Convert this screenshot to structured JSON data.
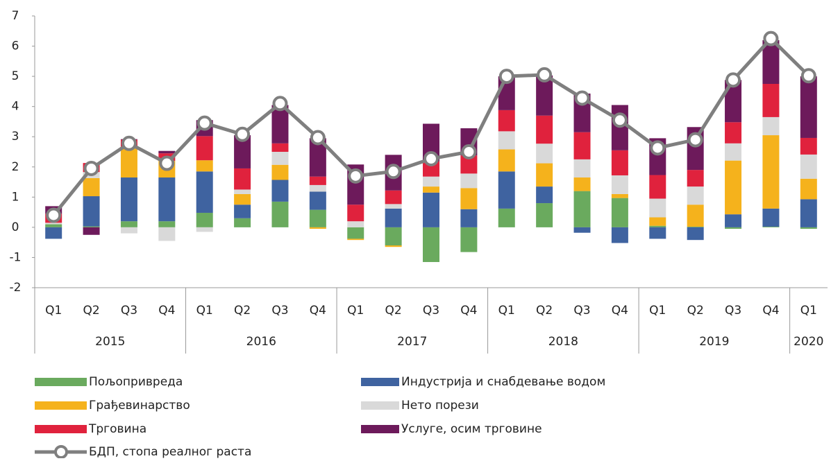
{
  "chart_data": {
    "type": "stacked-bar-line",
    "categories": [
      "Q1",
      "Q2",
      "Q3",
      "Q4",
      "Q1",
      "Q2",
      "Q3",
      "Q4",
      "Q1",
      "Q2",
      "Q3",
      "Q4",
      "Q1",
      "Q2",
      "Q3",
      "Q4",
      "Q1",
      "Q2",
      "Q3",
      "Q4",
      "Q1"
    ],
    "groups": [
      {
        "label": "2015",
        "size": 4
      },
      {
        "label": "2016",
        "size": 4
      },
      {
        "label": "2017",
        "size": 4
      },
      {
        "label": "2018",
        "size": 4
      },
      {
        "label": "2019",
        "size": 4
      },
      {
        "label": "2020",
        "size": 1
      }
    ],
    "ylim": [
      -2,
      7
    ],
    "yticks": [
      -2,
      -1,
      0,
      1,
      2,
      3,
      4,
      5,
      6,
      7
    ],
    "series": [
      {
        "name": "Пољопривреда",
        "color": "#6aaa5e",
        "values": [
          0.1,
          0.03,
          0.2,
          0.2,
          0.48,
          0.3,
          0.85,
          0.58,
          -0.38,
          -0.6,
          -1.15,
          -0.82,
          0.62,
          0.8,
          1.2,
          0.97,
          0.05,
          0.02,
          -0.05,
          0.02,
          -0.05
        ]
      },
      {
        "name": "Индустрија и снабдевање водом",
        "color": "#3f63a0",
        "values": [
          -0.38,
          1.0,
          1.45,
          1.45,
          1.37,
          0.45,
          0.72,
          0.6,
          0.0,
          0.62,
          1.15,
          0.6,
          1.23,
          0.55,
          -0.18,
          -0.52,
          -0.38,
          -0.42,
          0.43,
          0.6,
          0.93
        ]
      },
      {
        "name": "Грађевинарство",
        "color": "#f5b21c",
        "values": [
          0,
          0.6,
          1.0,
          0.55,
          0.37,
          0.35,
          0.5,
          -0.05,
          -0.04,
          -0.05,
          0.2,
          0.7,
          0.73,
          0.77,
          0.45,
          0.13,
          0.28,
          0.73,
          1.78,
          2.43,
          0.68
        ]
      },
      {
        "name": "Нето порези",
        "color": "#d9d9d9",
        "values": [
          0.05,
          0.2,
          -0.2,
          -0.45,
          -0.15,
          0.15,
          0.43,
          0.22,
          0.2,
          0.15,
          0.33,
          0.48,
          0.6,
          0.65,
          0.6,
          0.62,
          0.62,
          0.6,
          0.57,
          0.6,
          0.8
        ]
      },
      {
        "name": "Трговина",
        "color": "#e0223d",
        "values": [
          0.3,
          0.3,
          0.25,
          0.25,
          0.8,
          0.7,
          0.28,
          0.28,
          0.55,
          0.45,
          0.5,
          0.6,
          0.7,
          0.93,
          0.9,
          0.83,
          0.78,
          0.55,
          0.7,
          1.1,
          0.55
        ]
      },
      {
        "name": "Услуге, осим трговине",
        "color": "#6d1a5b",
        "values": [
          0.25,
          -0.25,
          0.02,
          0.08,
          0.53,
          1.1,
          1.27,
          1.27,
          1.33,
          1.18,
          1.25,
          0.9,
          1.12,
          1.33,
          1.28,
          1.5,
          1.22,
          1.42,
          1.4,
          1.45,
          2.04
        ]
      },
      {
        "name": "БДП, стопа реалног раста",
        "color": "#7f7f7f",
        "kind": "line",
        "values": [
          0.4,
          1.95,
          2.78,
          2.12,
          3.45,
          3.08,
          4.1,
          2.97,
          1.7,
          1.85,
          2.27,
          2.5,
          5.0,
          5.05,
          4.28,
          3.55,
          2.63,
          2.9,
          4.88,
          6.25,
          5.02
        ]
      }
    ]
  }
}
